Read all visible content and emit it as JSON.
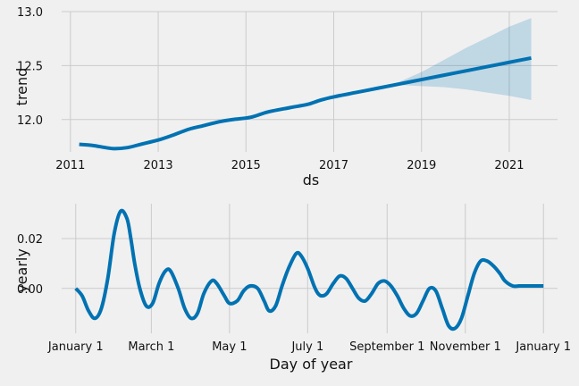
{
  "chart_data": [
    {
      "type": "line",
      "xlabel": "ds",
      "ylabel": "trend",
      "xlim": [
        2010.8,
        2022.1
      ],
      "ylim": [
        11.7,
        13.0
      ],
      "x_ticks": [
        2011,
        2013,
        2015,
        2017,
        2019,
        2021
      ],
      "x_tick_labels": [
        "2011",
        "2013",
        "2015",
        "2017",
        "2019",
        "2021"
      ],
      "y_ticks": [
        12.0,
        12.5,
        13.0
      ],
      "y_tick_labels": [
        "12.0",
        "12.5",
        "13.0"
      ],
      "grid": true,
      "series": [
        {
          "x": [
            2011.2,
            2011.5,
            2011.8,
            2012.0,
            2012.3,
            2012.6,
            2013.0,
            2013.3,
            2013.7,
            2014.0,
            2014.4,
            2014.7,
            2015.1,
            2015.5,
            2016.0,
            2016.4,
            2016.7,
            2017.0,
            2017.5,
            2018.0,
            2018.5,
            2019.0,
            2019.5,
            2020.0,
            2020.5,
            2021.0,
            2021.5
          ],
          "values": [
            11.77,
            11.76,
            11.74,
            11.73,
            11.74,
            11.77,
            11.81,
            11.85,
            11.91,
            11.94,
            11.98,
            12.0,
            12.02,
            12.07,
            12.11,
            12.14,
            12.18,
            12.21,
            12.25,
            12.29,
            12.33,
            12.37,
            12.41,
            12.45,
            12.49,
            12.53,
            12.57
          ]
        }
      ],
      "uncertainty_band": {
        "x": [
          2018.0,
          2018.5,
          2019.0,
          2019.5,
          2020.0,
          2020.5,
          2021.0,
          2021.5
        ],
        "lower": [
          12.29,
          12.32,
          12.31,
          12.3,
          12.28,
          12.25,
          12.22,
          12.18
        ],
        "upper": [
          12.29,
          12.35,
          12.44,
          12.55,
          12.66,
          12.76,
          12.86,
          12.94
        ]
      },
      "colors": {
        "line": "#0072B2",
        "band": "#0072B2"
      }
    },
    {
      "type": "line",
      "xlabel": "Day of year",
      "ylabel": "yearly",
      "xlim": [
        -11,
        376
      ],
      "ylim": [
        -0.018,
        0.034
      ],
      "x_ticks": [
        0,
        59,
        120,
        181,
        243,
        304,
        365
      ],
      "x_tick_labels": [
        "January 1",
        "March 1",
        "May 1",
        "July 1",
        "September 1",
        "November 1",
        "January 1"
      ],
      "y_ticks": [
        0.0,
        0.02
      ],
      "y_tick_labels": [
        "0.00",
        "0.02"
      ],
      "grid": true,
      "series": [
        {
          "x": [
            0,
            5,
            10,
            15,
            20,
            25,
            30,
            35,
            40,
            43,
            46,
            50,
            55,
            60,
            65,
            70,
            74,
            80,
            85,
            90,
            95,
            100,
            106,
            110,
            116,
            120,
            126,
            131,
            136,
            142,
            147,
            151,
            156,
            161,
            166,
            172,
            176,
            181,
            186,
            189,
            192,
            196,
            201,
            206,
            211,
            216,
            221,
            226,
            231,
            236,
            241,
            246,
            251,
            256,
            261,
            266,
            271,
            276,
            281,
            286,
            291,
            296,
            301,
            306,
            311,
            316,
            321,
            326,
            331,
            335,
            341,
            346,
            351,
            356,
            361,
            365
          ],
          "values": [
            0.0,
            -0.003,
            -0.009,
            -0.012,
            -0.008,
            0.004,
            0.022,
            0.031,
            0.028,
            0.02,
            0.01,
            0.0,
            -0.007,
            -0.006,
            0.002,
            0.007,
            0.007,
            0.0,
            -0.008,
            -0.012,
            -0.01,
            -0.002,
            0.003,
            0.002,
            -0.003,
            -0.006,
            -0.005,
            -0.001,
            0.001,
            0.0,
            -0.005,
            -0.009,
            -0.007,
            0.001,
            0.008,
            0.014,
            0.013,
            0.008,
            0.001,
            -0.002,
            -0.003,
            -0.002,
            0.002,
            0.005,
            0.004,
            0.0,
            -0.004,
            -0.005,
            -0.002,
            0.002,
            0.003,
            0.001,
            -0.003,
            -0.008,
            -0.011,
            -0.01,
            -0.005,
            0.0,
            -0.001,
            -0.008,
            -0.015,
            -0.016,
            -0.012,
            -0.003,
            0.006,
            0.011,
            0.011,
            0.009,
            0.006,
            0.003,
            0.001,
            0.001,
            0.001,
            0.001,
            0.001,
            0.001
          ]
        }
      ],
      "colors": {
        "line": "#0072B2"
      }
    }
  ]
}
